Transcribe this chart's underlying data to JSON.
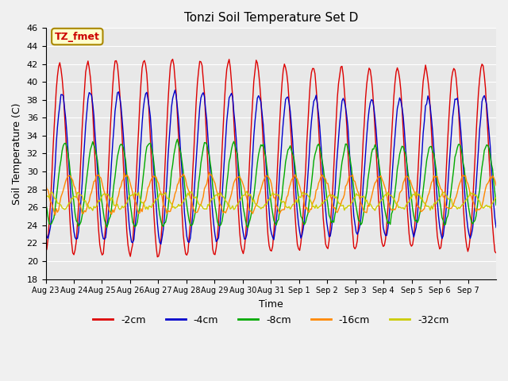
{
  "title": "Tonzi Soil Temperature Set D",
  "xlabel": "Time",
  "ylabel": "Soil Temperature (C)",
  "ylim": [
    18,
    46
  ],
  "yticks": [
    18,
    20,
    22,
    24,
    26,
    28,
    30,
    32,
    34,
    36,
    38,
    40,
    42,
    44,
    46
  ],
  "xtick_labels": [
    "Aug 23",
    "Aug 24",
    "Aug 25",
    "Aug 26",
    "Aug 27",
    "Aug 28",
    "Aug 29",
    "Aug 30",
    "Aug 31",
    "Sep 1",
    "Sep 2",
    "Sep 3",
    "Sep 4",
    "Sep 5",
    "Sep 6",
    "Sep 7"
  ],
  "annotation": "TZ_fmet",
  "series": [
    {
      "label": "-2cm",
      "color": "#dd0000",
      "amplitude": 10.5,
      "mean": 31.5,
      "phase": 0.0
    },
    {
      "label": "-4cm",
      "color": "#0000cc",
      "amplitude": 8.0,
      "mean": 30.5,
      "phase": 0.08
    },
    {
      "label": "-8cm",
      "color": "#00aa00",
      "amplitude": 4.5,
      "mean": 28.5,
      "phase": 0.18
    },
    {
      "label": "-16cm",
      "color": "#ff8800",
      "amplitude": 2.0,
      "mean": 27.5,
      "phase": 0.35
    },
    {
      "label": "-32cm",
      "color": "#cccc00",
      "amplitude": 0.8,
      "mean": 26.7,
      "phase": 0.65
    }
  ],
  "n_points": 384,
  "days": 16,
  "background_color": "#e8e8e8",
  "legend_colors": [
    "#dd0000",
    "#0000cc",
    "#00aa00",
    "#ff8800",
    "#cccc00"
  ],
  "legend_labels": [
    "-2cm",
    "-4cm",
    "-8cm",
    "-16cm",
    "-32cm"
  ]
}
